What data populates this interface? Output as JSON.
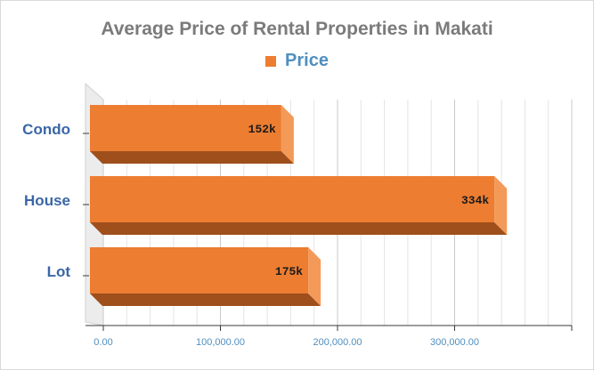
{
  "chart_data": {
    "type": "bar",
    "orientation": "horizontal",
    "title": "Average Price of Rental Properties in Makati",
    "categories": [
      "Condo",
      "House",
      "Lot"
    ],
    "series": [
      {
        "name": "Price",
        "values": [
          152000,
          334000,
          175000
        ]
      }
    ],
    "data_labels": [
      "152k",
      "334k",
      "175k"
    ],
    "xlim": [
      0,
      400000
    ],
    "x_ticks": [
      0,
      100000,
      200000,
      300000
    ],
    "x_tick_labels": [
      "0.00",
      "100,000.00",
      "200,000.00",
      "300,000.00"
    ],
    "grid": true,
    "legend_position": "top",
    "colors": {
      "bar": "#ed7d31",
      "bar_side": "#f39a58",
      "bar_bottom": "#9e4f1c",
      "category_label": "#3a66a6",
      "tick_label": "#4f8fbf",
      "legend_text": "#4f8fbf",
      "title": "#7b7b7b"
    }
  }
}
